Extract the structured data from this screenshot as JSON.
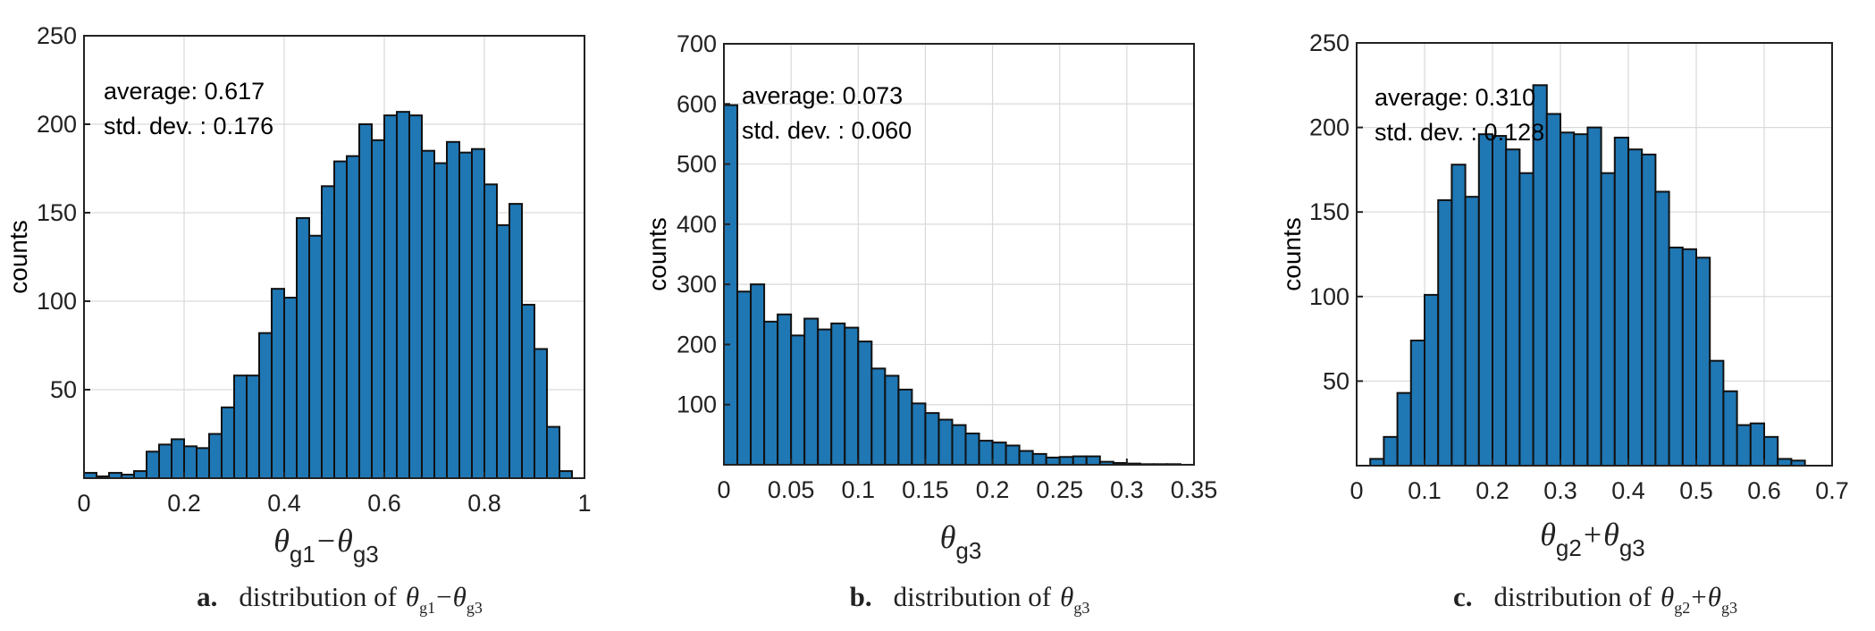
{
  "chart_data": [
    {
      "type": "bar",
      "panel": "a",
      "caption_label": "a.",
      "caption_text": "distribution of",
      "caption_var": [
        [
          "θ",
          "g1"
        ],
        [
          "−",
          ""
        ],
        [
          "θ",
          "g3"
        ]
      ],
      "xlabel_parts": [
        [
          "θ",
          "g1"
        ],
        [
          "−",
          ""
        ],
        [
          "θ",
          "g3"
        ]
      ],
      "ylabel": "counts",
      "xlim": [
        0,
        1
      ],
      "ylim": [
        0,
        250
      ],
      "xticks": [
        0,
        0.2,
        0.4,
        0.6,
        0.8,
        1
      ],
      "xtick_labels": [
        "0",
        "0.2",
        "0.4",
        "0.6",
        "0.8",
        "1"
      ],
      "yticks": [
        50,
        100,
        150,
        200,
        250
      ],
      "ytick_labels": [
        "50",
        "100",
        "150",
        "200",
        "250"
      ],
      "grid": true,
      "stat_lines": [
        "average: 0.617",
        "std. dev. : 0.176"
      ],
      "bin_width": 0.025,
      "bin_start": 0,
      "values": [
        3,
        1,
        3,
        2,
        4,
        15,
        19,
        22,
        18,
        17,
        25,
        40,
        58,
        58,
        82,
        107,
        102,
        147,
        137,
        165,
        179,
        182,
        200,
        191,
        205,
        207,
        205,
        185,
        178,
        190,
        184,
        186,
        166,
        143,
        155,
        98,
        73,
        29,
        4
      ]
    },
    {
      "type": "bar",
      "panel": "b",
      "caption_label": "b.",
      "caption_text": "distribution of",
      "caption_var": [
        [
          "θ",
          "g3"
        ]
      ],
      "xlabel_parts": [
        [
          "θ",
          "g3"
        ]
      ],
      "ylabel": "counts",
      "xlim": [
        0,
        0.35
      ],
      "ylim": [
        0,
        700
      ],
      "xticks": [
        0,
        0.05,
        0.1,
        0.15,
        0.2,
        0.25,
        0.3,
        0.35
      ],
      "xtick_labels": [
        "0",
        "0.05",
        "0.1",
        "0.15",
        "0.2",
        "0.25",
        "0.3",
        "0.35"
      ],
      "yticks": [
        100,
        200,
        300,
        400,
        500,
        600,
        700
      ],
      "ytick_labels": [
        "100",
        "200",
        "300",
        "400",
        "500",
        "600",
        "700"
      ],
      "grid": true,
      "stat_lines": [
        "average: 0.073",
        "std. dev. : 0.060"
      ],
      "bin_width": 0.01,
      "bin_start": 0,
      "values": [
        598,
        288,
        300,
        238,
        250,
        215,
        243,
        225,
        235,
        228,
        205,
        160,
        148,
        125,
        102,
        86,
        75,
        66,
        52,
        40,
        37,
        32,
        23,
        18,
        12,
        13,
        14,
        14,
        5,
        3,
        2,
        1,
        1,
        1
      ]
    },
    {
      "type": "bar",
      "panel": "c",
      "caption_label": "c.",
      "caption_text": "distribution of",
      "caption_var": [
        [
          "θ",
          "g2"
        ],
        [
          "+",
          ""
        ],
        [
          "θ",
          "g3"
        ]
      ],
      "xlabel_parts": [
        [
          "θ",
          "g2"
        ],
        [
          "+",
          ""
        ],
        [
          "θ",
          "g3"
        ]
      ],
      "ylabel": "counts",
      "xlim": [
        0,
        0.7
      ],
      "ylim": [
        0,
        250
      ],
      "xticks": [
        0,
        0.1,
        0.2,
        0.3,
        0.4,
        0.5,
        0.6,
        0.7
      ],
      "xtick_labels": [
        "0",
        "0.1",
        "0.2",
        "0.3",
        "0.4",
        "0.5",
        "0.6",
        "0.7"
      ],
      "yticks": [
        50,
        100,
        150,
        200,
        250
      ],
      "ytick_labels": [
        "50",
        "100",
        "150",
        "200",
        "250"
      ],
      "grid": true,
      "stat_lines": [
        "average: 0.310",
        "std. dev. : 0.128"
      ],
      "bin_width": 0.02,
      "bin_start": 0.02,
      "values": [
        4,
        17,
        43,
        74,
        101,
        157,
        178,
        159,
        196,
        195,
        187,
        173,
        225,
        208,
        197,
        196,
        200,
        173,
        194,
        187,
        184,
        162,
        129,
        128,
        123,
        62,
        44,
        24,
        25,
        17,
        4,
        3
      ]
    }
  ]
}
